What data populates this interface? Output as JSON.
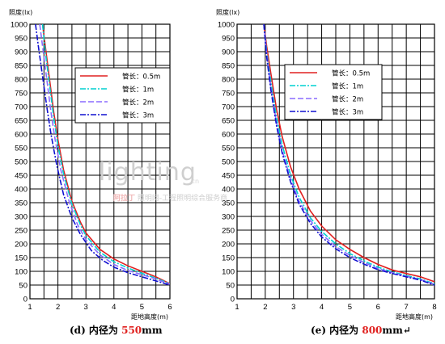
{
  "chart_data": [
    {
      "type": "line",
      "ylabel": "照度(lx)",
      "xlabel": "距地高度(m)",
      "xlim": [
        1,
        6
      ],
      "ylim": [
        0,
        1000
      ],
      "xticks": [
        1,
        2,
        3,
        4,
        5,
        6
      ],
      "yticks": [
        0,
        50,
        100,
        150,
        200,
        250,
        300,
        350,
        400,
        450,
        500,
        550,
        600,
        650,
        700,
        750,
        800,
        850,
        900,
        950,
        1000
      ],
      "grid": true,
      "legend_position": "top-right",
      "series": [
        {
          "name": "管长：0.5m",
          "color": "#e02020",
          "dash": "solid",
          "x": [
            1.45,
            1.55,
            1.7,
            1.85,
            2.0,
            2.2,
            2.5,
            2.8,
            3.0,
            3.5,
            4.0,
            4.5,
            5.0,
            5.5,
            6.0
          ],
          "y": [
            1000,
            920,
            800,
            680,
            580,
            470,
            355,
            280,
            240,
            180,
            145,
            120,
            100,
            80,
            55
          ]
        },
        {
          "name": "管长：1m",
          "color": "#00d0d0",
          "dash": "dashdot",
          "x": [
            1.45,
            1.55,
            1.7,
            1.85,
            2.0,
            2.2,
            2.5,
            2.8,
            3.0,
            3.5,
            4.0,
            4.5,
            5.0,
            5.5,
            6.0
          ],
          "y": [
            1000,
            900,
            780,
            660,
            560,
            455,
            345,
            270,
            230,
            170,
            135,
            112,
            93,
            75,
            55
          ]
        },
        {
          "name": "管长：2m",
          "color": "#8a6cff",
          "dash": "dash",
          "x": [
            1.35,
            1.45,
            1.6,
            1.75,
            1.9,
            2.1,
            2.4,
            2.7,
            3.0,
            3.5,
            4.0,
            4.5,
            5.0,
            5.5,
            6.0
          ],
          "y": [
            1000,
            920,
            800,
            680,
            580,
            470,
            355,
            270,
            215,
            160,
            125,
            103,
            88,
            72,
            53
          ]
        },
        {
          "name": "管长：3m",
          "color": "#1010d0",
          "dash": "dashdot",
          "x": [
            1.2,
            1.3,
            1.45,
            1.6,
            1.75,
            1.95,
            2.2,
            2.5,
            2.8,
            3.2,
            3.6,
            4.0,
            4.5,
            5.0,
            5.5,
            6.0
          ],
          "y": [
            1000,
            920,
            810,
            700,
            600,
            490,
            380,
            295,
            235,
            175,
            140,
            115,
            95,
            80,
            65,
            50
          ]
        }
      ]
    },
    {
      "type": "line",
      "ylabel": "照度(lx)",
      "xlabel": "距地高度(m)",
      "xlim": [
        1,
        8
      ],
      "ylim": [
        0,
        1000
      ],
      "xticks": [
        1,
        2,
        3,
        4,
        5,
        6,
        7,
        8
      ],
      "yticks": [
        0,
        50,
        100,
        150,
        200,
        250,
        300,
        350,
        400,
        450,
        500,
        550,
        600,
        650,
        700,
        750,
        800,
        850,
        900,
        950,
        1000
      ],
      "grid": true,
      "legend_position": "top-right",
      "series": [
        {
          "name": "管长：0.5m",
          "color": "#e02020",
          "dash": "solid",
          "x": [
            1.95,
            2.05,
            2.2,
            2.4,
            2.6,
            2.9,
            3.2,
            3.6,
            4.0,
            4.5,
            5.0,
            5.5,
            6.0,
            6.5,
            7.0,
            7.5,
            8.0
          ],
          "y": [
            1000,
            920,
            820,
            690,
            590,
            480,
            400,
            320,
            265,
            215,
            180,
            150,
            125,
            105,
            92,
            80,
            62
          ]
        },
        {
          "name": "管长：1m",
          "color": "#00d0d0",
          "dash": "dashdot",
          "x": [
            1.95,
            2.05,
            2.2,
            2.4,
            2.6,
            2.9,
            3.2,
            3.6,
            4.0,
            4.5,
            5.0,
            5.5,
            6.0,
            6.5,
            7.0,
            7.5,
            8.0
          ],
          "y": [
            1000,
            900,
            790,
            660,
            560,
            450,
            370,
            295,
            245,
            200,
            165,
            138,
            115,
            98,
            85,
            72,
            55
          ]
        },
        {
          "name": "管长：2m",
          "color": "#8a6cff",
          "dash": "dash",
          "x": [
            1.95,
            2.05,
            2.2,
            2.4,
            2.6,
            2.9,
            3.2,
            3.6,
            4.0,
            4.5,
            5.0,
            5.5,
            6.0,
            6.5,
            7.0,
            7.5,
            8.0
          ],
          "y": [
            1000,
            890,
            770,
            640,
            540,
            435,
            355,
            285,
            235,
            190,
            158,
            132,
            110,
            95,
            82,
            70,
            53
          ]
        },
        {
          "name": "管长：3m",
          "color": "#1010d0",
          "dash": "dashdot",
          "x": [
            1.95,
            2.05,
            2.2,
            2.4,
            2.6,
            2.9,
            3.2,
            3.6,
            4.0,
            4.5,
            5.0,
            5.5,
            6.0,
            6.5,
            7.0,
            7.5,
            8.0
          ],
          "y": [
            1000,
            880,
            760,
            630,
            530,
            425,
            345,
            275,
            225,
            182,
            150,
            126,
            106,
            92,
            80,
            68,
            50
          ]
        }
      ]
    }
  ],
  "captions": {
    "left": {
      "prefix": "(d) 内径为 ",
      "value": "550",
      "unit": "mm"
    },
    "right": {
      "prefix": "(e) 内径为 ",
      "value": "800",
      "unit": "mm↵"
    }
  },
  "watermark": {
    "main": "lighting",
    "cn": ".cn",
    "brand": "阿拉丁",
    "tagline": "照明网-工程照明综合服务商"
  }
}
